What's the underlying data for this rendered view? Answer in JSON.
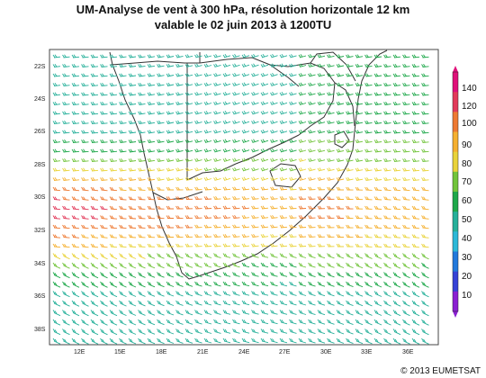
{
  "title": {
    "line1": "UM-Analyse de vent à 300 hPa, résolution horizontale 12 km",
    "line2": "valable le 02 juin 2013 à 1200TU"
  },
  "copyright": "© 2013 EUMETSAT",
  "map": {
    "lat_labels": [
      "22S",
      "24S",
      "26S",
      "28S",
      "30S",
      "32S",
      "34S",
      "36S",
      "38S"
    ],
    "lon_labels": [
      "12E",
      "15E",
      "18E",
      "21E",
      "24E",
      "27E",
      "30E",
      "33E",
      "36E"
    ],
    "lat_range": [
      -21,
      -39.5
    ],
    "lon_range": [
      9.8,
      38
    ],
    "land_color": "#ffffff",
    "border_color": "#333333"
  },
  "legend": {
    "labels": [
      "140",
      "120",
      "100",
      "90",
      "80",
      "70",
      "60",
      "50",
      "40",
      "30",
      "20",
      "10"
    ],
    "colors": [
      "#e0107a",
      "#e23a5a",
      "#ee7a33",
      "#f5b030",
      "#e9d33a",
      "#72c43b",
      "#1ea84a",
      "#26b09a",
      "#2cb8d8",
      "#2279dc",
      "#3642d6",
      "#8b1fd2"
    ]
  }
}
